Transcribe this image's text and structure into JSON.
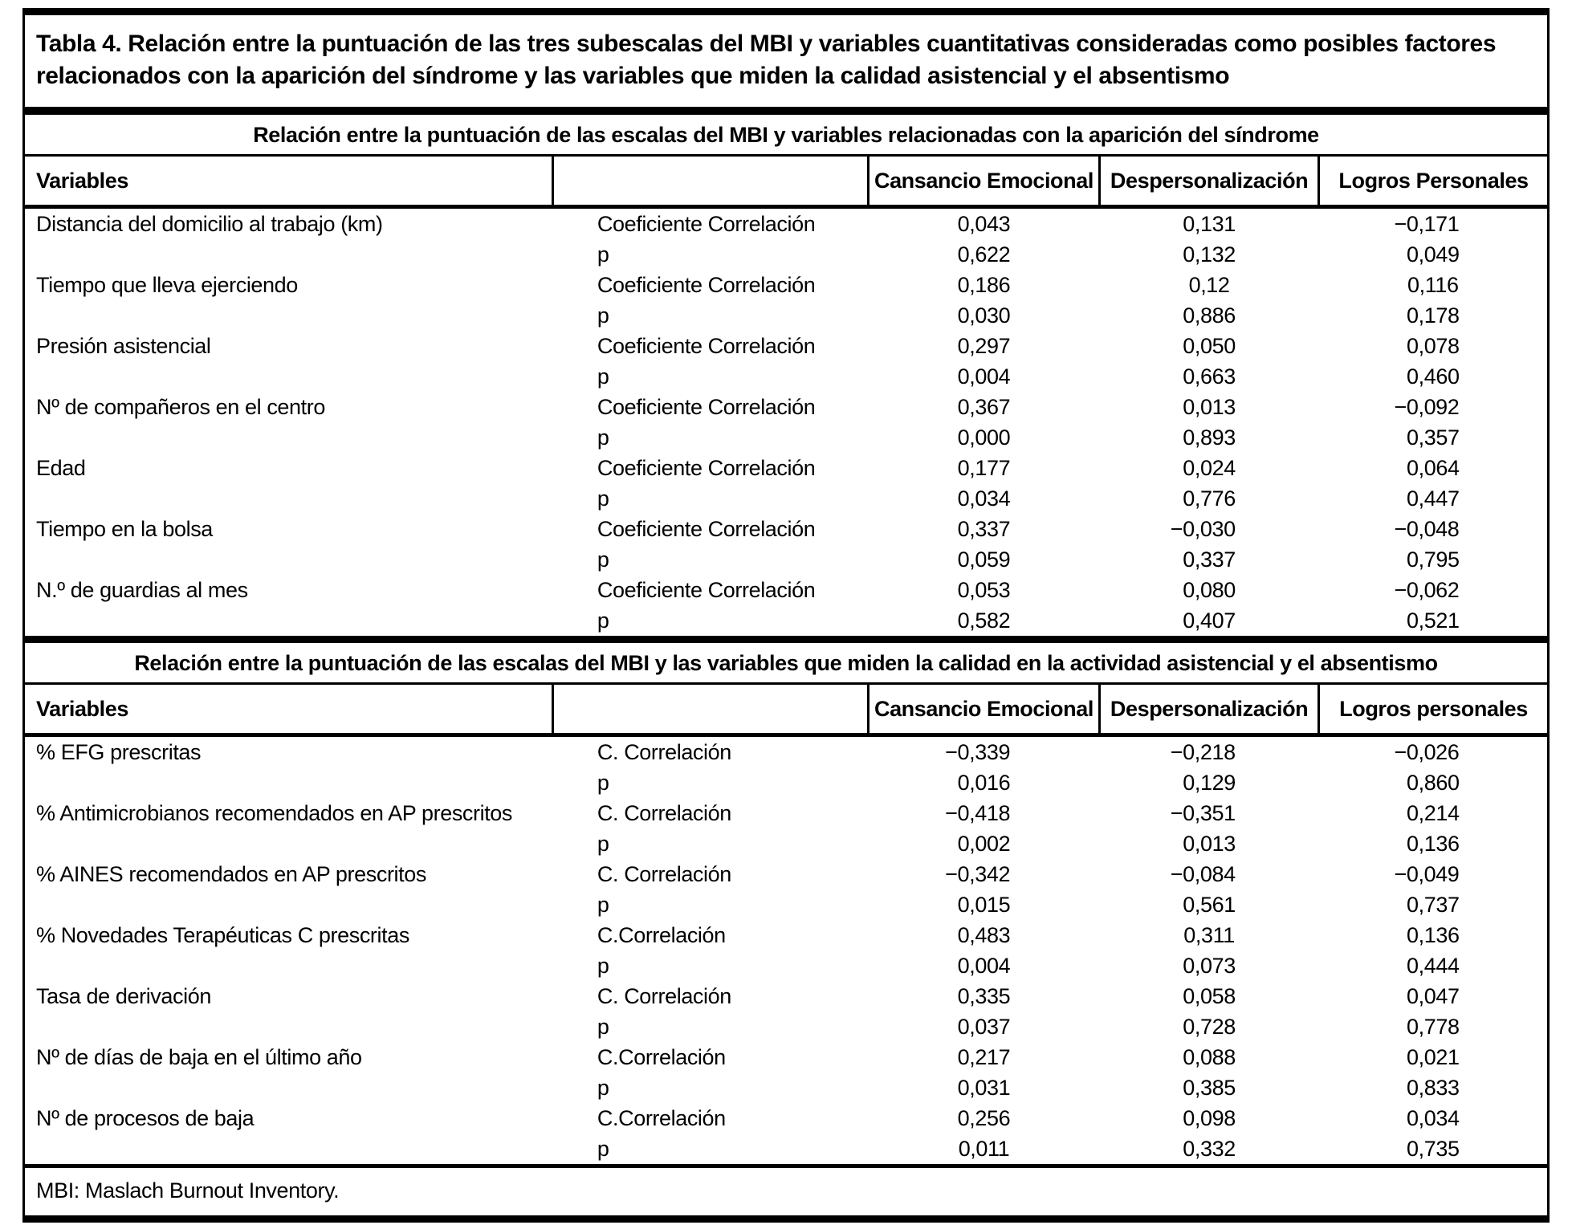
{
  "colors": {
    "text": "#000000",
    "background": "#ffffff",
    "rules": "#000000"
  },
  "table": {
    "title": "Tabla 4. Relación entre la puntuación de las tres subescalas del MBI y variables cuantitativas consideradas como posibles factores relacionados con la aparición del síndrome y las variables que miden la calidad asistencial y el absentismo",
    "footnote": "MBI: Maslach Burnout Inventory.",
    "sections": [
      {
        "subtitle": "Relación entre la puntuación de las escalas del MBI y variables relacionadas con la aparición del síndrome",
        "columns": [
          "Variables",
          "",
          "Cansancio Emocional",
          "Despersonalización",
          "Logros Personales"
        ],
        "rows": [
          {
            "variable": "Distancia del domicilio al trabajo (km)",
            "stat": "Coeficiente Correlación",
            "ce": "0,043",
            "dp": "0,131",
            "lp": "−0,171"
          },
          {
            "variable": "",
            "stat": "p",
            "ce": "0,622",
            "dp": "0,132",
            "lp": "0,049"
          },
          {
            "variable": "Tiempo que lleva ejerciendo",
            "stat": "Coeficiente Correlación",
            "ce": "0,186",
            "dp": "0,12",
            "lp": "0,116"
          },
          {
            "variable": "",
            "stat": "p",
            "ce": "0,030",
            "dp": "0,886",
            "lp": "0,178"
          },
          {
            "variable": "Presión asistencial",
            "stat": "Coeficiente Correlación",
            "ce": "0,297",
            "dp": "0,050",
            "lp": "0,078"
          },
          {
            "variable": "",
            "stat": "p",
            "ce": "0,004",
            "dp": "0,663",
            "lp": "0,460"
          },
          {
            "variable": "Nº de compañeros en el centro",
            "stat": "Coeficiente Correlación",
            "ce": "0,367",
            "dp": "0,013",
            "lp": "−0,092"
          },
          {
            "variable": "",
            "stat": "p",
            "ce": "0,000",
            "dp": "0,893",
            "lp": "0,357"
          },
          {
            "variable": "Edad",
            "stat": "Coeficiente Correlación",
            "ce": "0,177",
            "dp": "0,024",
            "lp": "0,064"
          },
          {
            "variable": "",
            "stat": "p",
            "ce": "0,034",
            "dp": "0,776",
            "lp": "0,447"
          },
          {
            "variable": "Tiempo en la bolsa",
            "stat": "Coeficiente Correlación",
            "ce": "0,337",
            "dp": "−0,030",
            "lp": "−0,048"
          },
          {
            "variable": "",
            "stat": "p",
            "ce": "0,059",
            "dp": "0,337",
            "lp": "0,795"
          },
          {
            "variable": "N.º de guardias al mes",
            "stat": "Coeficiente Correlación",
            "ce": "0,053",
            "dp": "0,080",
            "lp": "−0,062"
          },
          {
            "variable": "",
            "stat": "p",
            "ce": "0,582",
            "dp": "0,407",
            "lp": "0,521"
          }
        ]
      },
      {
        "subtitle": "Relación entre la puntuación de las escalas del MBI y las variables que miden la calidad en la actividad asistencial y el absentismo",
        "columns": [
          "Variables",
          "",
          "Cansancio Emocional",
          "Despersonalización",
          "Logros personales"
        ],
        "rows": [
          {
            "variable": "% EFG prescritas",
            "stat": "C. Correlación",
            "ce": "−0,339",
            "dp": "−0,218",
            "lp": "−0,026"
          },
          {
            "variable": "",
            "stat": "p",
            "ce": "0,016",
            "dp": "0,129",
            "lp": "0,860"
          },
          {
            "variable": "% Antimicrobianos recomendados en AP prescritos",
            "stat": "C. Correlación",
            "ce": "−0,418",
            "dp": "−0,351",
            "lp": "0,214"
          },
          {
            "variable": "",
            "stat": "p",
            "ce": "0,002",
            "dp": "0,013",
            "lp": "0,136"
          },
          {
            "variable": "% AINES recomendados en AP prescritos",
            "stat": "C. Correlación",
            "ce": "−0,342",
            "dp": "−0,084",
            "lp": "−0,049"
          },
          {
            "variable": "",
            "stat": "p",
            "ce": "0,015",
            "dp": "0,561",
            "lp": "0,737"
          },
          {
            "variable": "% Novedades Terapéuticas C prescritas",
            "stat": "C.Correlación",
            "ce": "0,483",
            "dp": "0,311",
            "lp": "0,136"
          },
          {
            "variable": "",
            "stat": "p",
            "ce": "0,004",
            "dp": "0,073",
            "lp": "0,444"
          },
          {
            "variable": "Tasa de derivación",
            "stat": "C. Correlación",
            "ce": "0,335",
            "dp": "0,058",
            "lp": "0,047"
          },
          {
            "variable": "",
            "stat": "p",
            "ce": "0,037",
            "dp": "0,728",
            "lp": "0,778"
          },
          {
            "variable": "Nº de días de baja en el último año",
            "stat": "C.Correlación",
            "ce": "0,217",
            "dp": "0,088",
            "lp": "0,021"
          },
          {
            "variable": "",
            "stat": "p",
            "ce": "0,031",
            "dp": "0,385",
            "lp": "0,833"
          },
          {
            "variable": "Nº de procesos de baja",
            "stat": "C.Correlación",
            "ce": "0,256",
            "dp": "0,098",
            "lp": "0,034"
          },
          {
            "variable": "",
            "stat": "p",
            "ce": "0,011",
            "dp": "0,332",
            "lp": "0,735"
          }
        ]
      }
    ]
  }
}
